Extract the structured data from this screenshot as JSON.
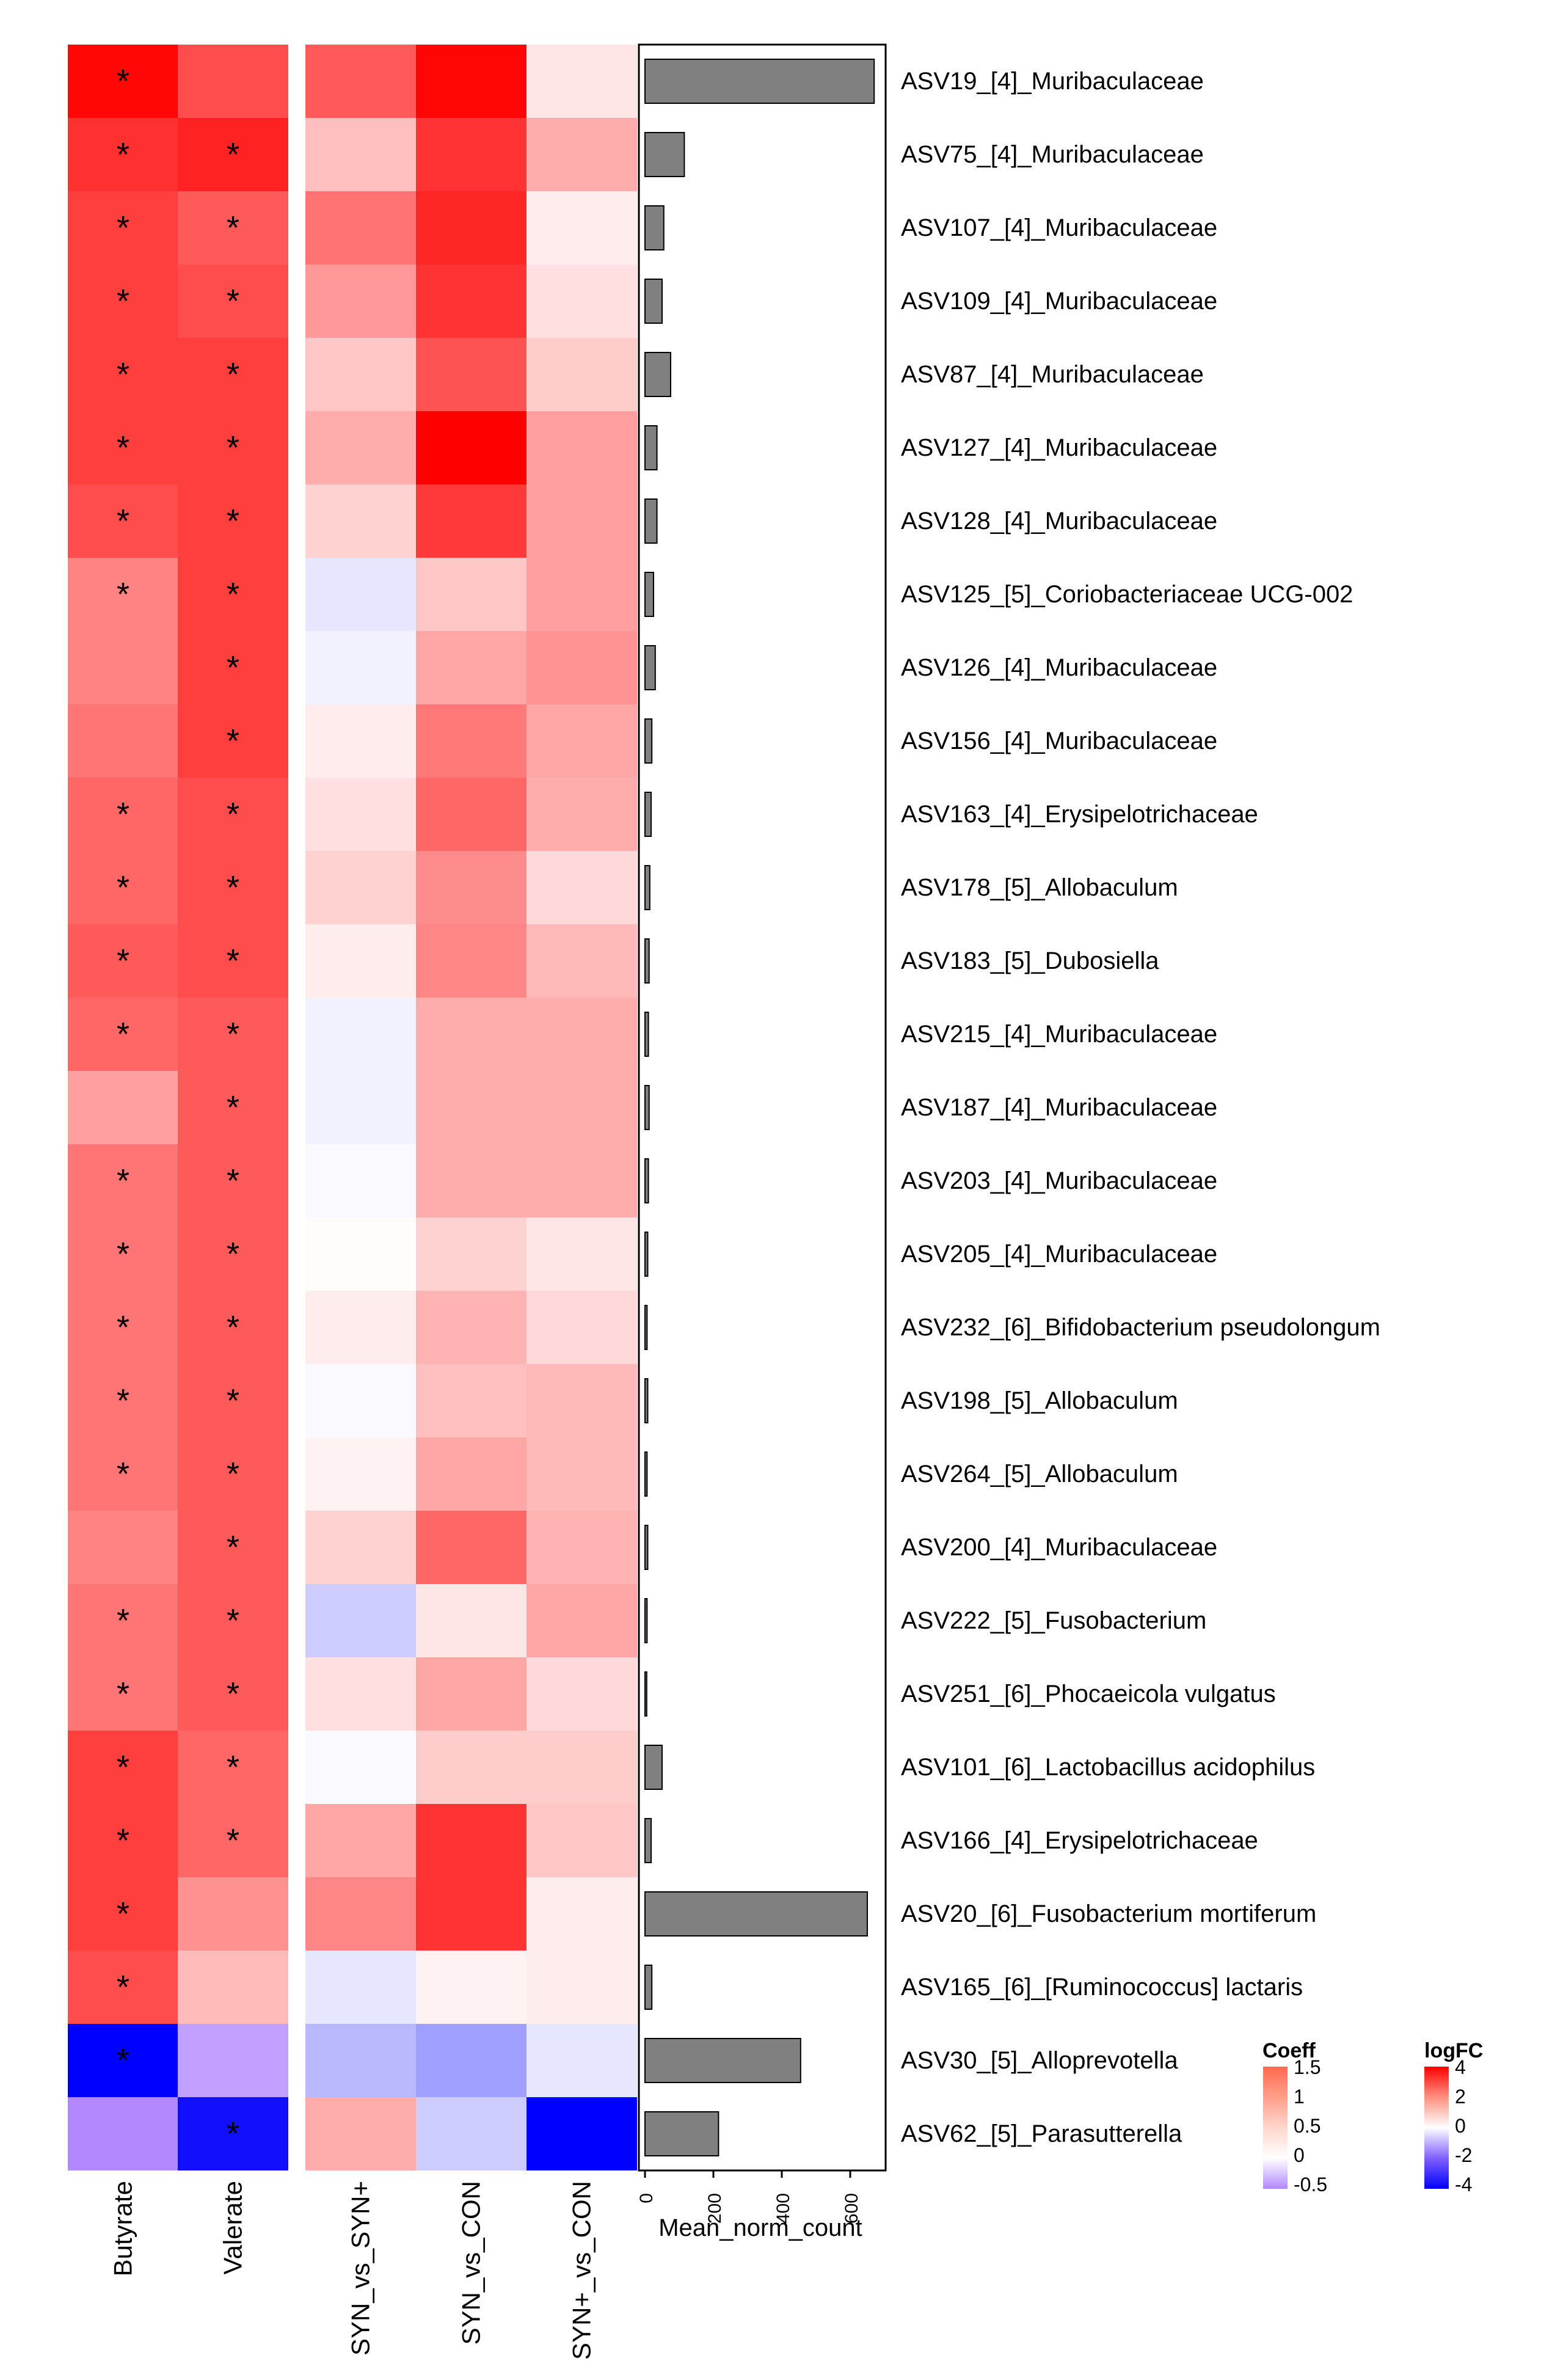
{
  "chart_data": {
    "type": "heatmap",
    "rows": [
      "ASV19_[4]_Muribaculaceae",
      "ASV75_[4]_Muribaculaceae",
      "ASV107_[4]_Muribaculaceae",
      "ASV109_[4]_Muribaculaceae",
      "ASV87_[4]_Muribaculaceae",
      "ASV127_[4]_Muribaculaceae",
      "ASV128_[4]_Muribaculaceae",
      "ASV125_[5]_Coriobacteriaceae UCG-002",
      "ASV126_[4]_Muribaculaceae",
      "ASV156_[4]_Muribaculaceae",
      "ASV163_[4]_Erysipelotrichaceae",
      "ASV178_[5]_Allobaculum",
      "ASV183_[5]_Dubosiella",
      "ASV215_[4]_Muribaculaceae",
      "ASV187_[4]_Muribaculaceae",
      "ASV203_[4]_Muribaculaceae",
      "ASV205_[4]_Muribaculaceae",
      "ASV232_[6]_Bifidobacterium pseudolongum",
      "ASV198_[5]_Allobaculum",
      "ASV264_[5]_Allobaculum",
      "ASV200_[4]_Muribaculaceae",
      "ASV222_[5]_Fusobacterium",
      "ASV251_[6]_Phocaeicola vulgatus",
      "ASV101_[6]_Lactobacillus acidophilus",
      "ASV166_[4]_Erysipelotrichaceae",
      "ASV20_[6]_Fusobacterium mortiferum",
      "ASV165_[6]_[Ruminococcus] lactaris",
      "ASV30_[5]_Alloprevotella",
      "ASV62_[5]_Parasutterella"
    ],
    "coeff_columns": [
      "Butyrate",
      "Valerate"
    ],
    "coeff": [
      [
        1.8,
        1.3
      ],
      [
        1.5,
        1.6
      ],
      [
        1.4,
        1.2
      ],
      [
        1.4,
        1.3
      ],
      [
        1.4,
        1.4
      ],
      [
        1.4,
        1.4
      ],
      [
        1.3,
        1.4
      ],
      [
        0.9,
        1.4
      ],
      [
        0.9,
        1.4
      ],
      [
        1.0,
        1.4
      ],
      [
        1.1,
        1.3
      ],
      [
        1.1,
        1.3
      ],
      [
        1.2,
        1.3
      ],
      [
        1.1,
        1.2
      ],
      [
        0.7,
        1.2
      ],
      [
        1.0,
        1.2
      ],
      [
        1.0,
        1.2
      ],
      [
        1.0,
        1.2
      ],
      [
        1.0,
        1.2
      ],
      [
        1.0,
        1.2
      ],
      [
        0.9,
        1.2
      ],
      [
        1.0,
        1.2
      ],
      [
        1.0,
        1.2
      ],
      [
        1.4,
        1.1
      ],
      [
        1.4,
        1.1
      ],
      [
        1.4,
        0.8
      ],
      [
        1.3,
        0.5
      ],
      [
        -3.5,
        -0.4
      ],
      [
        -0.5,
        -3.2
      ]
    ],
    "coeff_significant": [
      [
        true,
        false
      ],
      [
        true,
        true
      ],
      [
        true,
        true
      ],
      [
        true,
        true
      ],
      [
        true,
        true
      ],
      [
        true,
        true
      ],
      [
        true,
        true
      ],
      [
        true,
        true
      ],
      [
        false,
        true
      ],
      [
        false,
        true
      ],
      [
        true,
        true
      ],
      [
        true,
        true
      ],
      [
        true,
        true
      ],
      [
        true,
        true
      ],
      [
        false,
        true
      ],
      [
        true,
        true
      ],
      [
        true,
        true
      ],
      [
        true,
        true
      ],
      [
        true,
        true
      ],
      [
        true,
        true
      ],
      [
        false,
        true
      ],
      [
        true,
        true
      ],
      [
        true,
        true
      ],
      [
        true,
        true
      ],
      [
        true,
        true
      ],
      [
        true,
        false
      ],
      [
        true,
        false
      ],
      [
        true,
        false
      ],
      [
        false,
        true
      ]
    ],
    "logfc_columns": [
      "SYN_vs_SYN+",
      "SYN_vs_CON",
      "SYN+_vs_CON"
    ],
    "logfc": [
      [
        2.6,
        3.9,
        0.4
      ],
      [
        1.0,
        3.2,
        1.3
      ],
      [
        2.2,
        3.4,
        0.3
      ],
      [
        1.6,
        3.2,
        0.5
      ],
      [
        0.9,
        2.7,
        0.8
      ],
      [
        1.3,
        4.0,
        1.5
      ],
      [
        0.7,
        3.1,
        1.5
      ],
      [
        -0.4,
        0.9,
        1.5
      ],
      [
        -0.2,
        1.4,
        1.7
      ],
      [
        0.3,
        2.1,
        1.4
      ],
      [
        0.5,
        2.4,
        1.3
      ],
      [
        0.7,
        1.8,
        0.6
      ],
      [
        0.3,
        1.9,
        1.1
      ],
      [
        -0.2,
        1.3,
        1.3
      ],
      [
        -0.2,
        1.3,
        1.3
      ],
      [
        -0.1,
        1.3,
        1.3
      ],
      [
        0.05,
        0.7,
        0.4
      ],
      [
        0.3,
        1.2,
        0.6
      ],
      [
        -0.1,
        1.0,
        1.1
      ],
      [
        0.2,
        1.4,
        1.1
      ],
      [
        0.7,
        2.4,
        1.2
      ],
      [
        -0.8,
        0.4,
        1.4
      ],
      [
        0.5,
        1.4,
        0.6
      ],
      [
        -0.1,
        0.8,
        0.8
      ],
      [
        1.4,
        3.2,
        0.9
      ],
      [
        1.9,
        3.2,
        0.3
      ],
      [
        -0.4,
        0.2,
        0.3
      ],
      [
        -1.1,
        -1.5,
        -0.4
      ],
      [
        1.3,
        -0.8,
        -4.0
      ]
    ],
    "mean_norm_count": [
      670,
      115,
      55,
      50,
      75,
      35,
      35,
      25,
      30,
      20,
      18,
      14,
      12,
      10,
      12,
      10,
      8,
      6,
      8,
      6,
      8,
      6,
      5,
      50,
      18,
      650,
      20,
      455,
      215
    ],
    "bar_axis": {
      "label": "Mean_norm_count",
      "range": [
        0,
        700
      ],
      "ticks": [
        "0",
        "200",
        "400",
        "600"
      ]
    },
    "legend_coeff": {
      "title": "Coeff",
      "range": [
        -0.5,
        1.5
      ],
      "labels": [
        "1.5",
        "1",
        "0.5",
        "0",
        "-0.5"
      ]
    },
    "legend_logfc": {
      "title": "logFC",
      "range": [
        -4,
        4
      ],
      "labels": [
        "4",
        "2",
        "0",
        "-2",
        "-4"
      ]
    },
    "significance_marker": "*"
  },
  "colors": {
    "high": "#ff0000",
    "low": "#0000ff",
    "coeff_low": "#b388ff",
    "mid": "#ffffff",
    "bar_fill": "#808080"
  }
}
